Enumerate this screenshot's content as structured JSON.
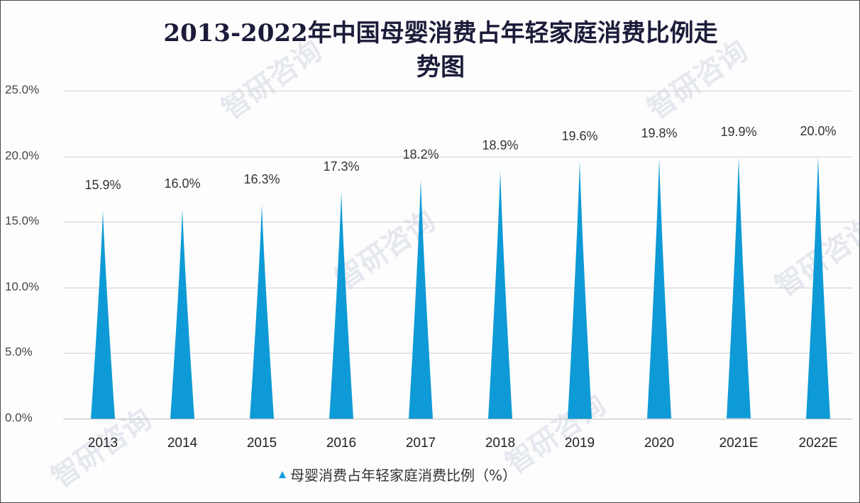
{
  "title_line1": "2013-2022年中国母婴消费占年轻家庭消费比例走",
  "title_line2": "势图",
  "legend": {
    "label": "母婴消费占年轻家庭消费比例（%）",
    "color": "#0e9ad6"
  },
  "watermark": {
    "text": "智研咨询",
    "url": "www.chyxx.com"
  },
  "y_ticks": [
    "25.0%",
    "20.0%",
    "15.0%",
    "10.0%",
    "5.0%",
    "0.0%"
  ],
  "categories": [
    "2013",
    "2014",
    "2015",
    "2016",
    "2017",
    "2018",
    "2019",
    "2020",
    "2021E",
    "2022E"
  ],
  "value_labels": [
    "15.9%",
    "16.0%",
    "16.3%",
    "17.3%",
    "18.2%",
    "18.9%",
    "19.6%",
    "19.8%",
    "19.9%",
    "20.0%"
  ],
  "chart_data": {
    "type": "bar",
    "title": "2013-2022年中国母婴消费占年轻家庭消费比例走势图",
    "categories": [
      "2013",
      "2014",
      "2015",
      "2016",
      "2017",
      "2018",
      "2019",
      "2020",
      "2021E",
      "2022E"
    ],
    "series": [
      {
        "name": "母婴消费占年轻家庭消费比例（%）",
        "values": [
          15.9,
          16.0,
          16.3,
          17.3,
          18.2,
          18.9,
          19.6,
          19.8,
          19.9,
          20.0
        ]
      }
    ],
    "xlabel": "",
    "ylabel": "",
    "ylim": [
      0,
      25
    ],
    "yticks": [
      0,
      5,
      10,
      15,
      20,
      25
    ],
    "ytick_format": "0.0%",
    "grid": true,
    "legend_position": "bottom",
    "bar_shape": "pointed-triangle (spike)",
    "color": "#0e9ad6"
  }
}
